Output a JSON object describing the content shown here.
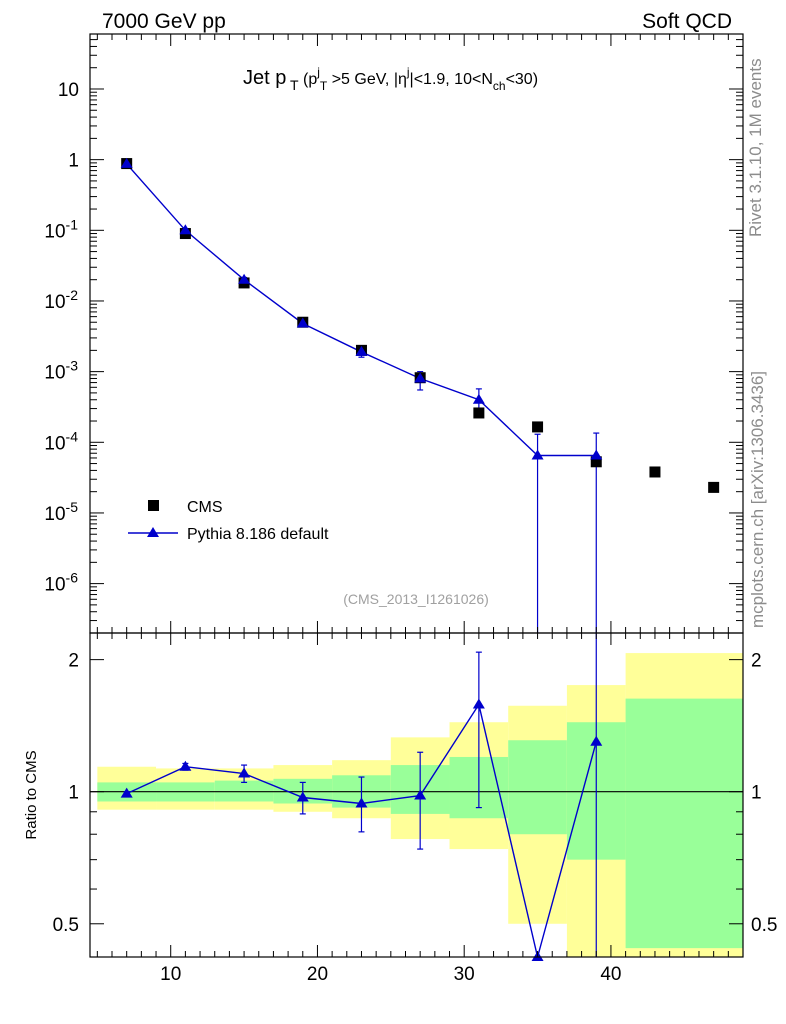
{
  "header": {
    "left": "7000 GeV pp",
    "right": "Soft QCD"
  },
  "side_labels": {
    "rivet": "Rivet 3.1.10,  1M events",
    "source": "mcplots.cern.ch [arXiv:1306.3436]"
  },
  "chart_data": [
    {
      "type": "scatter",
      "title": "Jet p_T (p_T^j>5 GeV, |η^j|<1.9, 10<N_ch<30)",
      "analysis_label": "(CMS_2013_I1261026)",
      "y_scale": "log",
      "xlim": [
        4.5,
        49
      ],
      "ylim": [
        2e-07,
        60
      ],
      "y_tick_labels": [
        "10^-6",
        "10^-5",
        "10^-4",
        "10^-3",
        "10^-2",
        "10^-1",
        "1",
        "10"
      ],
      "legend_position": "lower-left",
      "series": [
        {
          "name": "CMS",
          "marker": "square",
          "color": "#000000",
          "x": [
            7,
            11,
            15,
            19,
            23,
            27,
            31,
            35,
            39,
            43,
            47
          ],
          "y": [
            0.88,
            0.09,
            0.018,
            0.005,
            0.002,
            0.00082,
            0.00026,
            0.000165,
            5.3e-05,
            3.8e-05,
            2.3e-05
          ]
        },
        {
          "name": "Pythia 8.186 default",
          "marker": "triangle",
          "color": "#0000cc",
          "x": [
            7,
            11,
            15,
            19,
            23,
            27,
            31,
            35,
            39
          ],
          "y": [
            0.87,
            0.1,
            0.02,
            0.0048,
            0.0019,
            0.0008,
            0.0004,
            6.5e-05,
            6.5e-05
          ],
          "y_err_low": [
            0.03,
            0.005,
            0.0015,
            0.0004,
            0.0003,
            0.00025,
            0.00012,
            6.5e-05,
            6.5e-05
          ],
          "y_err_high": [
            0.03,
            0.005,
            0.0015,
            0.0004,
            0.0003,
            0.0002,
            0.00017,
            6.5e-05,
            7e-05
          ]
        }
      ]
    },
    {
      "type": "line",
      "ylabel": "Ratio to CMS",
      "y_scale": "log",
      "xlim": [
        4.5,
        49
      ],
      "ylim": [
        0.42,
        2.3
      ],
      "x_ticks": [
        10,
        20,
        30,
        40
      ],
      "y_ticks": [
        0.5,
        1,
        2
      ],
      "reference_line": 1,
      "bands": {
        "x_edges": [
          5,
          9,
          13,
          17,
          21,
          25,
          29,
          33,
          37,
          41,
          49
        ],
        "inner_low": [
          0.95,
          0.95,
          0.95,
          0.94,
          0.92,
          0.89,
          0.87,
          0.8,
          0.7,
          0.44
        ],
        "inner_high": [
          1.05,
          1.05,
          1.06,
          1.07,
          1.09,
          1.15,
          1.2,
          1.31,
          1.44,
          1.63
        ],
        "outer_low": [
          0.91,
          0.91,
          0.91,
          0.9,
          0.87,
          0.78,
          0.74,
          0.5,
          0.42,
          0.42
        ],
        "outer_high": [
          1.14,
          1.13,
          1.13,
          1.15,
          1.18,
          1.33,
          1.44,
          1.57,
          1.75,
          2.07
        ]
      },
      "series": [
        {
          "name": "Pythia 8.186 default",
          "color": "#0000cc",
          "x": [
            7,
            11,
            15,
            19,
            23,
            27,
            31,
            35,
            39
          ],
          "y": [
            0.99,
            1.14,
            1.1,
            0.97,
            0.94,
            0.98,
            1.58,
            0.42,
            1.3
          ],
          "y_err_low": [
            0.01,
            0.02,
            0.05,
            0.08,
            0.13,
            0.24,
            0.66,
            0.0,
            0.88
          ],
          "y_err_high": [
            0.01,
            0.02,
            0.05,
            0.08,
            0.14,
            0.25,
            0.5,
            0.0,
            1.1
          ]
        }
      ]
    }
  ]
}
